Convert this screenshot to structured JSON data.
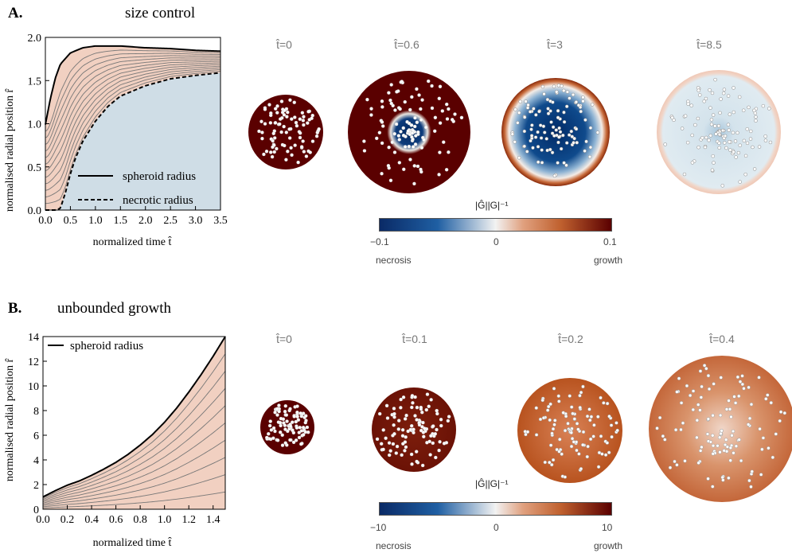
{
  "colors": {
    "growth_fill": "#f1d0c1",
    "necrotic_fill": "#cfdde6",
    "curve": "#000000",
    "inner": "#777777"
  },
  "panelA": {
    "letter": "A.",
    "title": "size control",
    "chart_data": {
      "type": "line",
      "xlabel": "normalized time t̂",
      "ylabel": "normalised radial position r̂",
      "xlim": [
        0,
        3.5
      ],
      "ylim": [
        0,
        2.0
      ],
      "xticks": [
        "0.0",
        "0.5",
        "1.0",
        "1.5",
        "2.0",
        "2.5",
        "3.0",
        "3.5"
      ],
      "yticks": [
        "0.0",
        "0.5",
        "1.0",
        "1.5",
        "2.0"
      ],
      "series": [
        {
          "name": "spheroid radius",
          "style": "solid",
          "x": [
            0,
            0.1,
            0.2,
            0.3,
            0.5,
            0.75,
            1.0,
            1.5,
            2.0,
            2.5,
            3.0,
            3.5
          ],
          "y": [
            0.99,
            1.29,
            1.53,
            1.69,
            1.82,
            1.88,
            1.9,
            1.9,
            1.88,
            1.87,
            1.85,
            1.84
          ]
        },
        {
          "name": "necrotic radius",
          "style": "dashed",
          "x": [
            0,
            0.2,
            0.3,
            0.4,
            0.5,
            0.6,
            0.75,
            1.0,
            1.25,
            1.5,
            2.0,
            2.5,
            3.0,
            3.5
          ],
          "y": [
            0,
            0,
            0.02,
            0.2,
            0.42,
            0.6,
            0.8,
            1.03,
            1.2,
            1.32,
            1.44,
            1.52,
            1.56,
            1.59
          ]
        }
      ],
      "legend": "bottom-right"
    },
    "snapshots": [
      {
        "label": "t̂=0"
      },
      {
        "label": "t̂=0.6"
      },
      {
        "label": "t̂=3"
      },
      {
        "label": "t̂=8.5"
      }
    ],
    "colorbar": {
      "title": "|Ĝ||G|⁻¹",
      "min": "−0.1",
      "mid": "0",
      "max": "0.1",
      "left": "necrosis",
      "right": "growth"
    }
  },
  "panelB": {
    "letter": "B.",
    "title": "unbounded growth",
    "chart_data": {
      "type": "line",
      "xlabel": "normalized time t̂",
      "ylabel": "normalised radial position r̂",
      "xlim": [
        0,
        1.5
      ],
      "ylim": [
        0,
        14
      ],
      "xticks": [
        "0.0",
        "0.2",
        "0.4",
        "0.6",
        "0.8",
        "1.0",
        "1.2",
        "1.4"
      ],
      "yticks": [
        "0",
        "2",
        "4",
        "6",
        "8",
        "10",
        "12",
        "14"
      ],
      "series": [
        {
          "name": "spheroid radius",
          "style": "solid",
          "x": [
            0,
            0.1,
            0.2,
            0.3,
            0.4,
            0.5,
            0.6,
            0.7,
            0.8,
            0.9,
            1.0,
            1.1,
            1.2,
            1.3,
            1.4,
            1.5
          ],
          "y": [
            1.0,
            1.5,
            1.95,
            2.3,
            2.75,
            3.25,
            3.8,
            4.45,
            5.2,
            6.05,
            7.05,
            8.2,
            9.5,
            10.9,
            12.4,
            14.0
          ]
        }
      ],
      "legend": "top-left"
    },
    "snapshots": [
      {
        "label": "t̂=0"
      },
      {
        "label": "t̂=0.1"
      },
      {
        "label": "t̂=0.2"
      },
      {
        "label": "t̂=0.4"
      }
    ],
    "colorbar": {
      "title": "|Ĝ||G|⁻¹",
      "min": "−10",
      "mid": "0",
      "max": "10",
      "left": "necrosis",
      "right": "growth"
    }
  }
}
